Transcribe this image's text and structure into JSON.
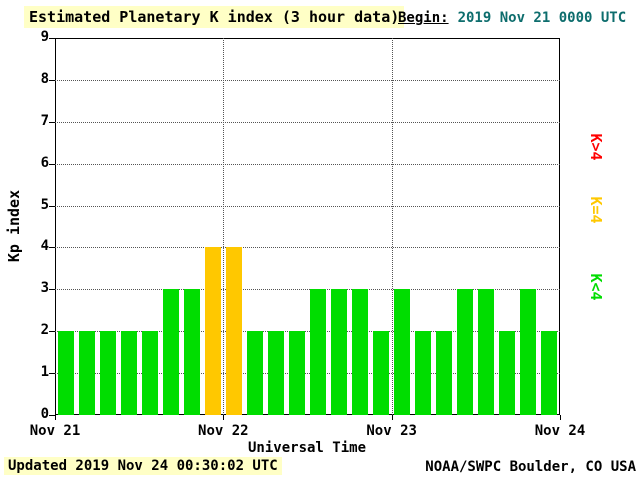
{
  "header": {
    "title": "Estimated Planetary K index (3 hour data)",
    "begin_label": "Begin:",
    "begin_value": "2019 Nov 21 0000 UTC",
    "begin_value_color": "#0d6d6d"
  },
  "legend": {
    "items": [
      {
        "label": "K>4",
        "color": "#ff0000"
      },
      {
        "label": "K=4",
        "color": "#ffc800"
      },
      {
        "label": "K<4",
        "color": "#00dd00"
      }
    ]
  },
  "footer": {
    "updated": "Updated 2019 Nov 24 00:30:02 UTC",
    "credit": "NOAA/SWPC Boulder, CO USA"
  },
  "chart_data": {
    "type": "bar",
    "title": "Estimated Planetary K index (3 hour data)",
    "xlabel": "Universal Time",
    "ylabel": "Kp index",
    "ylim": [
      0,
      9
    ],
    "y_ticks": [
      0,
      1,
      2,
      3,
      4,
      5,
      6,
      7,
      8,
      9
    ],
    "x_ticks": [
      "Nov 21",
      "Nov 22",
      "Nov 23",
      "Nov 24"
    ],
    "bar_interval_hours": 3,
    "begin_utc": "2019 Nov 21 0000 UTC",
    "values": [
      2,
      2,
      2,
      2,
      2,
      3,
      3,
      4,
      4,
      2,
      2,
      2,
      3,
      3,
      3,
      2,
      3,
      2,
      2,
      3,
      3,
      2,
      3,
      2
    ],
    "color_rule": {
      "k_lt_4": "#00dd00",
      "k_eq_4": "#ffc800",
      "k_gt_4": "#ff0000"
    },
    "grid": true,
    "legend_position": "right"
  }
}
